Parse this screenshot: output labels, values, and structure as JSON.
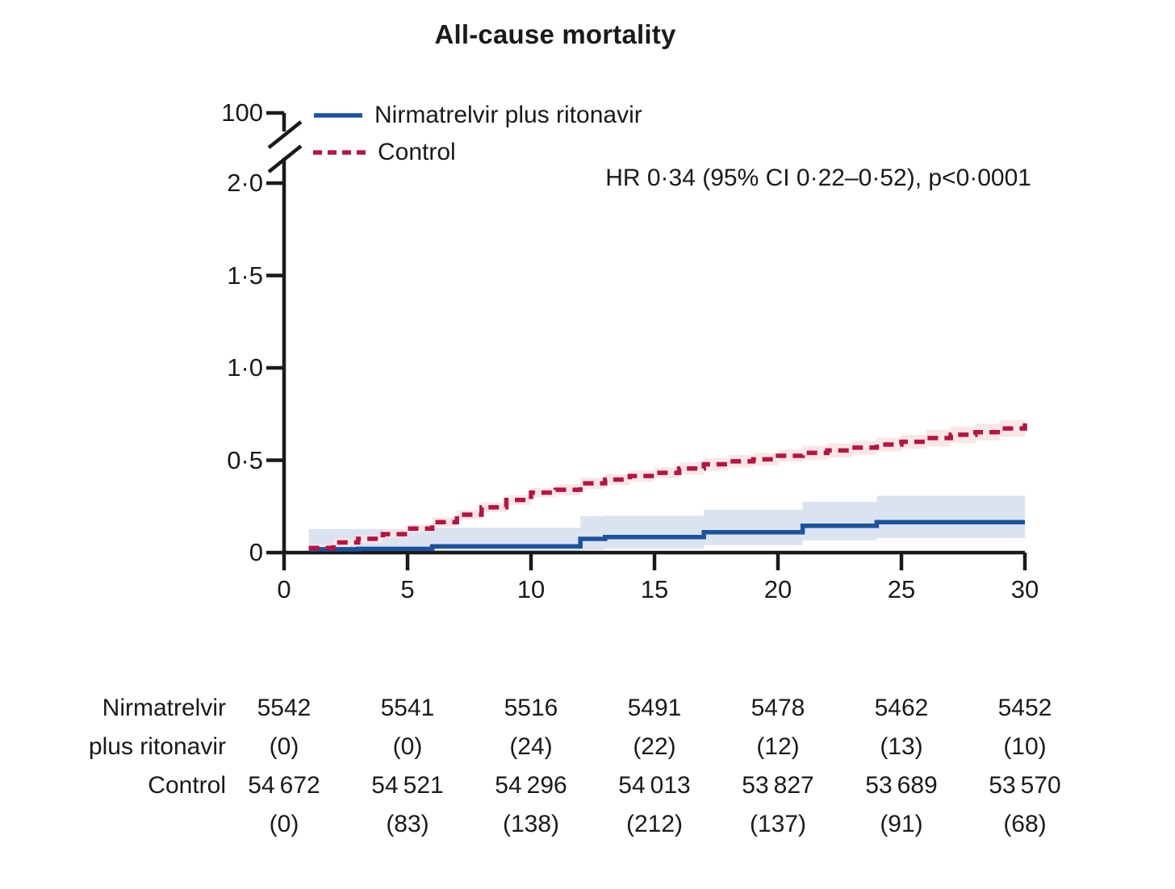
{
  "title": "All-cause mortality",
  "colors": {
    "treatment_line": "#1a539e",
    "treatment_band": "#dce3f0",
    "control_line": "#b91243",
    "control_band": "#f8e7e4",
    "axis": "#1a1a1a",
    "text": "#1a1a1a"
  },
  "chart_data": {
    "type": "line",
    "subtype": "kaplan-meier-step-cumulative-incidence",
    "title": "All-cause mortality",
    "annotation": "HR 0·34 (95% CI 0·22–0·52), p<0·0001",
    "xlabel": "",
    "ylabel": "",
    "x_ticks": [
      0,
      5,
      10,
      15,
      20,
      25,
      30
    ],
    "x_tick_labels": [
      "0",
      "5",
      "10",
      "15",
      "20",
      "25",
      "30"
    ],
    "y_tick_labels": [
      "100",
      "2·0",
      "1·5",
      "1·0",
      "0·5",
      "0"
    ],
    "y_tick_values": [
      100,
      2.0,
      1.5,
      1.0,
      0.5,
      0
    ],
    "axis_break_between": [
      "100",
      "2·0"
    ],
    "xlim": [
      0,
      30
    ],
    "ylim_displayed": [
      0,
      2.0
    ],
    "grid": false,
    "legend_position": "top-left-inside",
    "x": [
      1,
      2,
      3,
      4,
      5,
      6,
      7,
      8,
      9,
      10,
      11,
      12,
      13,
      14,
      15,
      16,
      17,
      18,
      19,
      20,
      21,
      22,
      23,
      24,
      25,
      26,
      27,
      28,
      29,
      30
    ],
    "series": [
      {
        "name": "Nirmatrelvir plus ritonavir",
        "style": "solid",
        "values": [
          0.018,
          0.018,
          0.02,
          0.02,
          0.02,
          0.034,
          0.034,
          0.034,
          0.034,
          0.034,
          0.034,
          0.074,
          0.084,
          0.084,
          0.084,
          0.084,
          0.11,
          0.11,
          0.11,
          0.11,
          0.145,
          0.145,
          0.145,
          0.165,
          0.165,
          0.165,
          0.165,
          0.165,
          0.165,
          0.165
        ],
        "ci_upper": [
          0.128,
          0.128,
          0.128,
          0.128,
          0.128,
          0.135,
          0.135,
          0.135,
          0.135,
          0.135,
          0.135,
          0.197,
          0.2,
          0.2,
          0.2,
          0.2,
          0.232,
          0.232,
          0.232,
          0.232,
          0.275,
          0.275,
          0.275,
          0.308,
          0.308,
          0.308,
          0.308,
          0.308,
          0.308,
          0.308
        ],
        "ci_lower": [
          0.001,
          0.001,
          0.001,
          0.001,
          0.001,
          0.003,
          0.003,
          0.003,
          0.003,
          0.003,
          0.003,
          0.015,
          0.02,
          0.02,
          0.02,
          0.02,
          0.04,
          0.04,
          0.04,
          0.04,
          0.066,
          0.066,
          0.066,
          0.079,
          0.079,
          0.079,
          0.079,
          0.079,
          0.079,
          0.079
        ]
      },
      {
        "name": "Control",
        "style": "dashed",
        "values": [
          0.025,
          0.055,
          0.075,
          0.1,
          0.13,
          0.165,
          0.205,
          0.245,
          0.285,
          0.325,
          0.34,
          0.375,
          0.395,
          0.415,
          0.432,
          0.455,
          0.478,
          0.494,
          0.505,
          0.524,
          0.54,
          0.553,
          0.568,
          0.585,
          0.6,
          0.62,
          0.638,
          0.652,
          0.672,
          0.7
        ],
        "ci_upper": [
          0.045,
          0.075,
          0.095,
          0.12,
          0.15,
          0.191,
          0.231,
          0.271,
          0.311,
          0.351,
          0.37,
          0.405,
          0.425,
          0.445,
          0.462,
          0.489,
          0.512,
          0.528,
          0.539,
          0.558,
          0.578,
          0.591,
          0.606,
          0.623,
          0.638,
          0.665,
          0.683,
          0.697,
          0.717,
          0.748
        ],
        "ci_lower": [
          0.006,
          0.035,
          0.055,
          0.08,
          0.11,
          0.139,
          0.179,
          0.219,
          0.259,
          0.299,
          0.31,
          0.345,
          0.365,
          0.385,
          0.402,
          0.421,
          0.444,
          0.46,
          0.471,
          0.49,
          0.502,
          0.515,
          0.53,
          0.547,
          0.562,
          0.575,
          0.593,
          0.607,
          0.627,
          0.652
        ]
      }
    ]
  },
  "risk_table": {
    "columns_days": [
      0,
      5,
      10,
      15,
      20,
      25,
      30
    ],
    "rows": [
      {
        "label_lines": [
          "Nirmatrelvir",
          "plus ritonavir"
        ],
        "at_risk": [
          "5542",
          "5541",
          "5516",
          "5491",
          "5478",
          "5462",
          "5452"
        ],
        "events": [
          "(0)",
          "(0)",
          "(24)",
          "(22)",
          "(12)",
          "(13)",
          "(10)"
        ]
      },
      {
        "label_lines": [
          "Control"
        ],
        "at_risk": [
          "54 672",
          "54 521",
          "54 296",
          "54 013",
          "53 827",
          "53 689",
          "53 570"
        ],
        "events": [
          "(0)",
          "(83)",
          "(138)",
          "(212)",
          "(137)",
          "(91)",
          "(68)"
        ]
      }
    ]
  }
}
